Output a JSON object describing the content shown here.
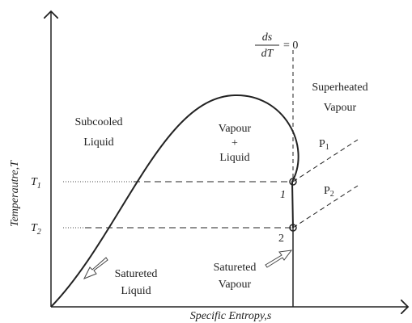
{
  "equation": {
    "numerator": "ds",
    "denominator": "dT",
    "rhs": "= 0"
  },
  "regions": {
    "superheated": [
      "Superheated",
      "Vapour"
    ],
    "subcooled": [
      "Subcooled",
      "Liquid"
    ],
    "mixture": [
      "Vapour",
      "+",
      "Liquid"
    ]
  },
  "pressures": [
    {
      "label": "P",
      "subscript": "1"
    },
    {
      "label": "P",
      "subscript": "2"
    }
  ],
  "temperatures": [
    {
      "label": "T",
      "subscript": "1"
    },
    {
      "label": "T",
      "subscript": "2"
    }
  ],
  "states": [
    "1",
    "2"
  ],
  "annotations": [
    [
      "Satureted",
      "Liquid"
    ],
    [
      "Satureted",
      "Vapour"
    ]
  ],
  "axes": {
    "y_label": "Temperautre,T",
    "x_label": "Specific Entropy,s"
  }
}
